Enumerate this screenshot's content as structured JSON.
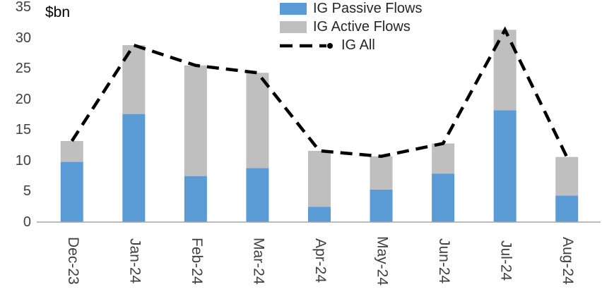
{
  "chart_data": {
    "type": "bar",
    "subtype": "stacked-bar-with-line",
    "title": "",
    "unit_label": "$bn",
    "categories": [
      "Dec-23",
      "Jan-24",
      "Feb-24",
      "Mar-24",
      "Apr-24",
      "May-24",
      "Jun-24",
      "Jul-24",
      "Aug-24"
    ],
    "series": [
      {
        "name": "IG Passive Flows",
        "kind": "bar",
        "color": "#5B9BD5",
        "values": [
          9.8,
          17.6,
          7.5,
          8.8,
          2.5,
          5.3,
          7.9,
          18.2,
          4.3
        ]
      },
      {
        "name": "IG Active Flows",
        "kind": "bar",
        "color": "#BFBFBF",
        "values": [
          3.4,
          11.2,
          18.0,
          15.5,
          9.1,
          5.4,
          4.9,
          13.1,
          6.3
        ]
      },
      {
        "name": "IG All",
        "kind": "line",
        "style": "dashed",
        "color": "#000000",
        "values": [
          13.2,
          28.8,
          25.5,
          24.3,
          11.6,
          10.7,
          12.8,
          31.3,
          10.6
        ]
      }
    ],
    "y_axis": {
      "min": 0,
      "max": 35,
      "step": 5,
      "tick_labels": [
        "0",
        "5",
        "10",
        "15",
        "20",
        "25",
        "30",
        "35"
      ]
    },
    "x_axis": {
      "label_rotation_deg": 90
    },
    "legend": {
      "position": "top-center",
      "entries": [
        "IG Passive Flows",
        "IG Active Flows",
        "IG All"
      ]
    },
    "grid": false,
    "colors": {
      "axis_line": "#A6A6A6",
      "text": "#404040"
    }
  }
}
